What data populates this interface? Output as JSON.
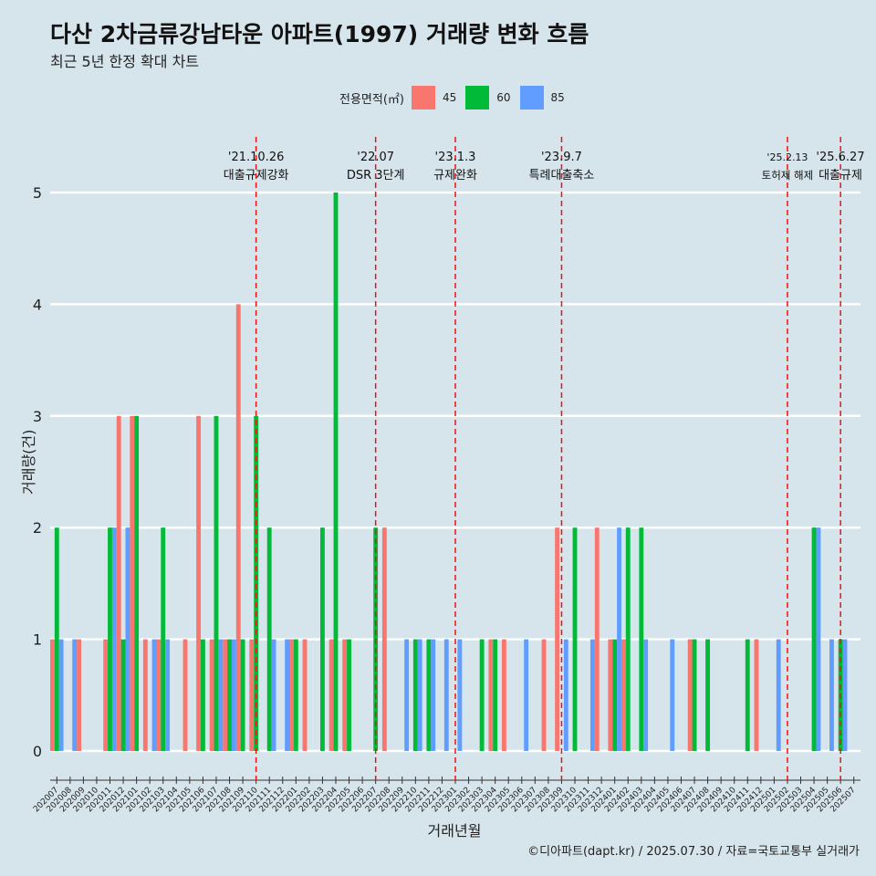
{
  "title": "다산 2차금류강남타운 아파트(1997) 거래량 변화 흐름",
  "subtitle": "최근 5년 한정 확대 차트",
  "caption": "©디아파트(dapt.kr) / 2025.07.30 / 자료=국토교통부 실거래가",
  "legend": {
    "title": "전용면적(㎡)",
    "items": [
      {
        "label": "45",
        "color": "#F8766D"
      },
      {
        "label": "60",
        "color": "#00BA38"
      },
      {
        "label": "85",
        "color": "#619CFF"
      }
    ]
  },
  "chart_data": {
    "type": "bar",
    "title": "다산 2차금류강남타운 아파트(1997) 거래량 변화 흐름",
    "subtitle": "최근 5년 한정 확대 차트",
    "xlabel": "거래년월",
    "ylabel": "거래량(건)",
    "ylim": [
      0,
      5
    ],
    "yticks": [
      0,
      1,
      2,
      3,
      4,
      5
    ],
    "grid": "horizontal",
    "legend_position": "top",
    "categories": [
      "202007",
      "202008",
      "202009",
      "202010",
      "202011",
      "202012",
      "202101",
      "202102",
      "202103",
      "202104",
      "202105",
      "202106",
      "202107",
      "202108",
      "202109",
      "202110",
      "202111",
      "202112",
      "202201",
      "202202",
      "202203",
      "202204",
      "202205",
      "202206",
      "202207",
      "202208",
      "202209",
      "202210",
      "202211",
      "202212",
      "202301",
      "202302",
      "202303",
      "202304",
      "202305",
      "202306",
      "202307",
      "202308",
      "202309",
      "202310",
      "202311",
      "202312",
      "202401",
      "202402",
      "202403",
      "202404",
      "202405",
      "202406",
      "202407",
      "202408",
      "202409",
      "202410",
      "202411",
      "202412",
      "202501",
      "202502",
      "202503",
      "202504",
      "202505",
      "202506",
      "202507"
    ],
    "series": [
      {
        "name": "45",
        "color": "#F8766D",
        "values": [
          1,
          0,
          1,
          0,
          1,
          3,
          3,
          1,
          1,
          0,
          1,
          3,
          1,
          1,
          4,
          1,
          0,
          0,
          1,
          1,
          0,
          1,
          1,
          0,
          0,
          2,
          0,
          0,
          0,
          0,
          0,
          0,
          0,
          1,
          1,
          0,
          0,
          1,
          2,
          0,
          0,
          2,
          1,
          1,
          0,
          0,
          0,
          0,
          1,
          0,
          0,
          0,
          0,
          1,
          0,
          0,
          0,
          0,
          0,
          0,
          0
        ]
      },
      {
        "name": "60",
        "color": "#00BA38",
        "values": [
          2,
          0,
          0,
          0,
          2,
          1,
          3,
          0,
          2,
          0,
          0,
          1,
          3,
          1,
          1,
          3,
          2,
          0,
          1,
          0,
          2,
          5,
          1,
          0,
          2,
          0,
          0,
          1,
          1,
          0,
          0,
          0,
          1,
          1,
          0,
          0,
          0,
          0,
          0,
          2,
          0,
          0,
          1,
          2,
          2,
          0,
          0,
          0,
          1,
          1,
          0,
          0,
          1,
          0,
          0,
          0,
          0,
          2,
          0,
          1,
          0
        ]
      },
      {
        "name": "85",
        "color": "#619CFF",
        "values": [
          1,
          1,
          0,
          0,
          2,
          2,
          0,
          1,
          1,
          0,
          0,
          0,
          1,
          1,
          0,
          0,
          1,
          1,
          0,
          0,
          0,
          0,
          0,
          0,
          0,
          0,
          1,
          1,
          1,
          1,
          1,
          0,
          0,
          0,
          0,
          1,
          0,
          0,
          1,
          0,
          1,
          0,
          2,
          0,
          1,
          0,
          1,
          0,
          0,
          0,
          0,
          0,
          0,
          0,
          1,
          0,
          0,
          2,
          1,
          1,
          0
        ]
      }
    ],
    "annotations": [
      {
        "at": "202110",
        "date": "'21.10.26",
        "text": "대출규제강화"
      },
      {
        "at": "202207",
        "date": "'22.07",
        "text": "DSR 3단계"
      },
      {
        "at": "202301",
        "date": "'23.1.3",
        "text": "규제완화"
      },
      {
        "at": "202309",
        "date": "'23.9.7",
        "text": "특례대출축소"
      },
      {
        "at": "202502",
        "date": "'25.2.13",
        "text": "토허제 해제"
      },
      {
        "at": "202506",
        "date": "'25.6.27",
        "text": "대출규제"
      }
    ]
  }
}
